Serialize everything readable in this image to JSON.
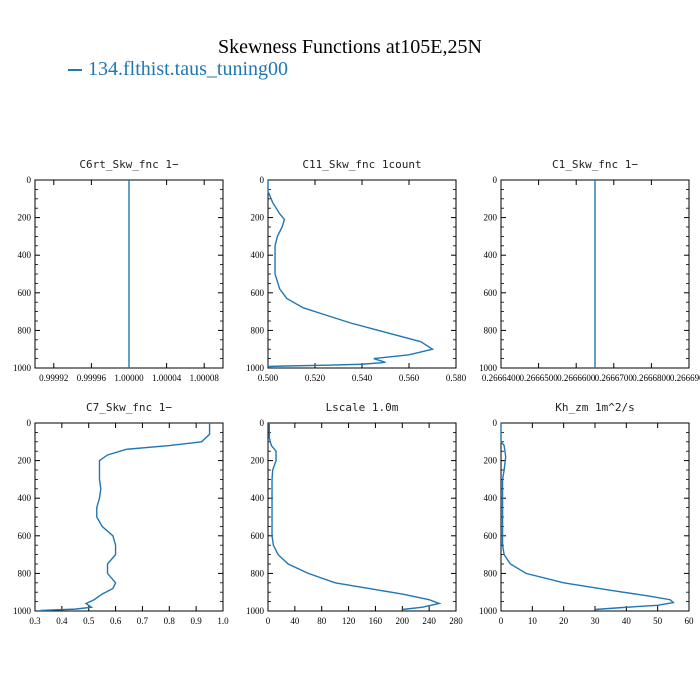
{
  "title": "Skewness Functions at105E,25N",
  "legend": {
    "label": "134.flthist.taus_tuning00",
    "color": "#1f77b4"
  },
  "chart_data": [
    {
      "type": "line",
      "title": "C6rt_Skw_fnc   1−",
      "xlim": [
        0.9999,
        1.0001
      ],
      "ylim": [
        1000,
        0
      ],
      "xticks": [
        "0.99992",
        "0.99996",
        "1.00000",
        "1.00004",
        "1.00008"
      ],
      "xtick_values": [
        0.99992,
        0.99996,
        1.0,
        1.00004,
        1.00008
      ],
      "yticks": [
        "0",
        "200",
        "400",
        "600",
        "800",
        "1000"
      ],
      "series": [
        {
          "color": "#1f77b4",
          "points": [
            [
              1.0,
              0
            ],
            [
              1.0,
              1000
            ]
          ]
        }
      ]
    },
    {
      "type": "line",
      "title": "C11_Skw_fnc   1count",
      "xlim": [
        0.5,
        0.58
      ],
      "ylim": [
        1000,
        0
      ],
      "xticks": [
        "0.500",
        "0.520",
        "0.540",
        "0.560",
        "0.580"
      ],
      "xtick_values": [
        0.5,
        0.52,
        0.54,
        0.56,
        0.58
      ],
      "yticks": [
        "0",
        "200",
        "400",
        "600",
        "800",
        "1000"
      ],
      "series": [
        {
          "color": "#1f77b4",
          "points": [
            [
              0.5,
              0
            ],
            [
              0.5,
              60
            ],
            [
              0.502,
              120
            ],
            [
              0.505,
              180
            ],
            [
              0.507,
              210
            ],
            [
              0.506,
              250
            ],
            [
              0.504,
              300
            ],
            [
              0.503,
              350
            ],
            [
              0.503,
              400
            ],
            [
              0.503,
              450
            ],
            [
              0.503,
              500
            ],
            [
              0.505,
              580
            ],
            [
              0.508,
              630
            ],
            [
              0.515,
              680
            ],
            [
              0.525,
              720
            ],
            [
              0.535,
              760
            ],
            [
              0.55,
              810
            ],
            [
              0.565,
              860
            ],
            [
              0.57,
              900
            ],
            [
              0.56,
              930
            ],
            [
              0.545,
              950
            ],
            [
              0.55,
              970
            ],
            [
              0.54,
              980
            ],
            [
              0.525,
              985
            ],
            [
              0.505,
              990
            ],
            [
              0.5,
              992
            ]
          ]
        }
      ]
    },
    {
      "type": "line",
      "title": "C1_Skw_fnc   1−",
      "xlim": [
        0.26664,
        0.26669
      ],
      "ylim": [
        1000,
        0
      ],
      "xticks": [
        "0.2666400",
        "0.2666500",
        "0.2666600",
        "0.2666700",
        "0.2666800",
        "0.2666900"
      ],
      "xtick_values": [
        0.26664,
        0.26665,
        0.26666,
        0.26667,
        0.26668,
        0.26669
      ],
      "yticks": [
        "0",
        "200",
        "400",
        "600",
        "800",
        "1000"
      ],
      "series": [
        {
          "color": "#1f77b4",
          "points": [
            [
              0.266665,
              0
            ],
            [
              0.266665,
              1000
            ]
          ]
        }
      ]
    },
    {
      "type": "line",
      "title": "C7_Skw_fnc   1−",
      "xlim": [
        0.3,
        1.0
      ],
      "ylim": [
        1000,
        0
      ],
      "xticks": [
        "0.3",
        "0.4",
        "0.5",
        "0.6",
        "0.7",
        "0.8",
        "0.9",
        "1.0"
      ],
      "xtick_values": [
        0.3,
        0.4,
        0.5,
        0.6,
        0.7,
        0.8,
        0.9,
        1.0
      ],
      "yticks": [
        "0",
        "200",
        "400",
        "600",
        "800",
        "1000"
      ],
      "series": [
        {
          "color": "#1f77b4",
          "points": [
            [
              0.95,
              0
            ],
            [
              0.95,
              60
            ],
            [
              0.92,
              100
            ],
            [
              0.8,
              120
            ],
            [
              0.64,
              140
            ],
            [
              0.57,
              170
            ],
            [
              0.54,
              200
            ],
            [
              0.54,
              250
            ],
            [
              0.54,
              300
            ],
            [
              0.545,
              350
            ],
            [
              0.54,
              400
            ],
            [
              0.53,
              450
            ],
            [
              0.53,
              500
            ],
            [
              0.55,
              550
            ],
            [
              0.59,
              600
            ],
            [
              0.6,
              650
            ],
            [
              0.6,
              700
            ],
            [
              0.57,
              750
            ],
            [
              0.57,
              800
            ],
            [
              0.6,
              850
            ],
            [
              0.59,
              880
            ],
            [
              0.55,
              910
            ],
            [
              0.52,
              940
            ],
            [
              0.49,
              960
            ],
            [
              0.51,
              980
            ],
            [
              0.45,
              990
            ],
            [
              0.32,
              997
            ]
          ]
        }
      ]
    },
    {
      "type": "line",
      "title": "Lscale   1.0m",
      "xlim": [
        0,
        280
      ],
      "ylim": [
        1000,
        0
      ],
      "xticks": [
        "0",
        "40",
        "80",
        "120",
        "160",
        "200",
        "240",
        "280"
      ],
      "xtick_values": [
        0,
        40,
        80,
        120,
        160,
        200,
        240,
        280
      ],
      "yticks": [
        "0",
        "200",
        "400",
        "600",
        "800",
        "1000"
      ],
      "series": [
        {
          "color": "#1f77b4",
          "points": [
            [
              2,
              0
            ],
            [
              2,
              80
            ],
            [
              5,
              120
            ],
            [
              12,
              150
            ],
            [
              12,
              200
            ],
            [
              7,
              250
            ],
            [
              6,
              300
            ],
            [
              6,
              400
            ],
            [
              6,
              500
            ],
            [
              6,
              600
            ],
            [
              8,
              650
            ],
            [
              15,
              700
            ],
            [
              30,
              750
            ],
            [
              60,
              800
            ],
            [
              100,
              850
            ],
            [
              150,
              880
            ],
            [
              200,
              910
            ],
            [
              240,
              940
            ],
            [
              255,
              960
            ],
            [
              230,
              980
            ],
            [
              200,
              992
            ]
          ]
        }
      ]
    },
    {
      "type": "line",
      "title": "Kh_zm   1m^2/s",
      "xlim": [
        0,
        60
      ],
      "ylim": [
        1000,
        0
      ],
      "xticks": [
        "0",
        "10",
        "20",
        "30",
        "40",
        "50",
        "60"
      ],
      "xtick_values": [
        0,
        10,
        20,
        30,
        40,
        50,
        60
      ],
      "yticks": [
        "0",
        "200",
        "400",
        "600",
        "800",
        "1000"
      ],
      "series": [
        {
          "color": "#1f77b4",
          "points": [
            [
              0,
              0
            ],
            [
              0,
              100
            ],
            [
              1,
              120
            ],
            [
              1.5,
              180
            ],
            [
              1,
              250
            ],
            [
              0.5,
              300
            ],
            [
              0.5,
              500
            ],
            [
              0.5,
              650
            ],
            [
              1,
              700
            ],
            [
              3,
              750
            ],
            [
              8,
              800
            ],
            [
              20,
              850
            ],
            [
              35,
              890
            ],
            [
              47,
              920
            ],
            [
              54,
              940
            ],
            [
              55,
              955
            ],
            [
              50,
              970
            ],
            [
              40,
              980
            ],
            [
              30,
              992
            ]
          ]
        }
      ]
    }
  ]
}
